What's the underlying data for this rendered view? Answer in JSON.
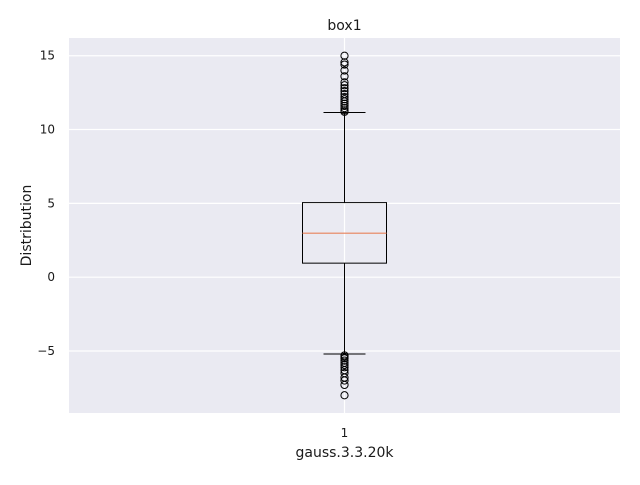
{
  "chart_data": {
    "type": "box",
    "title": "box1",
    "xlabel": "gauss.3.3.20k",
    "ylabel": "Distribution",
    "categories": [
      "1"
    ],
    "ylim": [
      -9.2,
      16.2
    ],
    "yticks": [
      15,
      10,
      5,
      0,
      -5
    ],
    "ytick_labels": [
      "15",
      "10",
      "5",
      "0",
      "−5"
    ],
    "grid": true,
    "boxes": [
      {
        "category": "1",
        "whisker_low": -5.2,
        "q1": 0.95,
        "median": 2.98,
        "q3": 5.05,
        "whisker_high": 11.15,
        "outliers_high": [
          11.2,
          11.3,
          11.45,
          11.6,
          11.75,
          11.9,
          12.05,
          12.2,
          12.4,
          12.6,
          12.8,
          13.0,
          13.2,
          13.6,
          14.0,
          14.4,
          14.55,
          15.0
        ],
        "outliers_low": [
          -5.3,
          -5.4,
          -5.5,
          -5.65,
          -5.8,
          -5.95,
          -6.1,
          -6.3,
          -6.5,
          -6.8,
          -7.0,
          -7.3,
          -8.0
        ]
      }
    ],
    "colors": {
      "plot_background": "#eaeaf2",
      "grid": "#ffffff",
      "box_edge": "#000000",
      "median": "#e8825a",
      "flier": "#000000"
    }
  }
}
